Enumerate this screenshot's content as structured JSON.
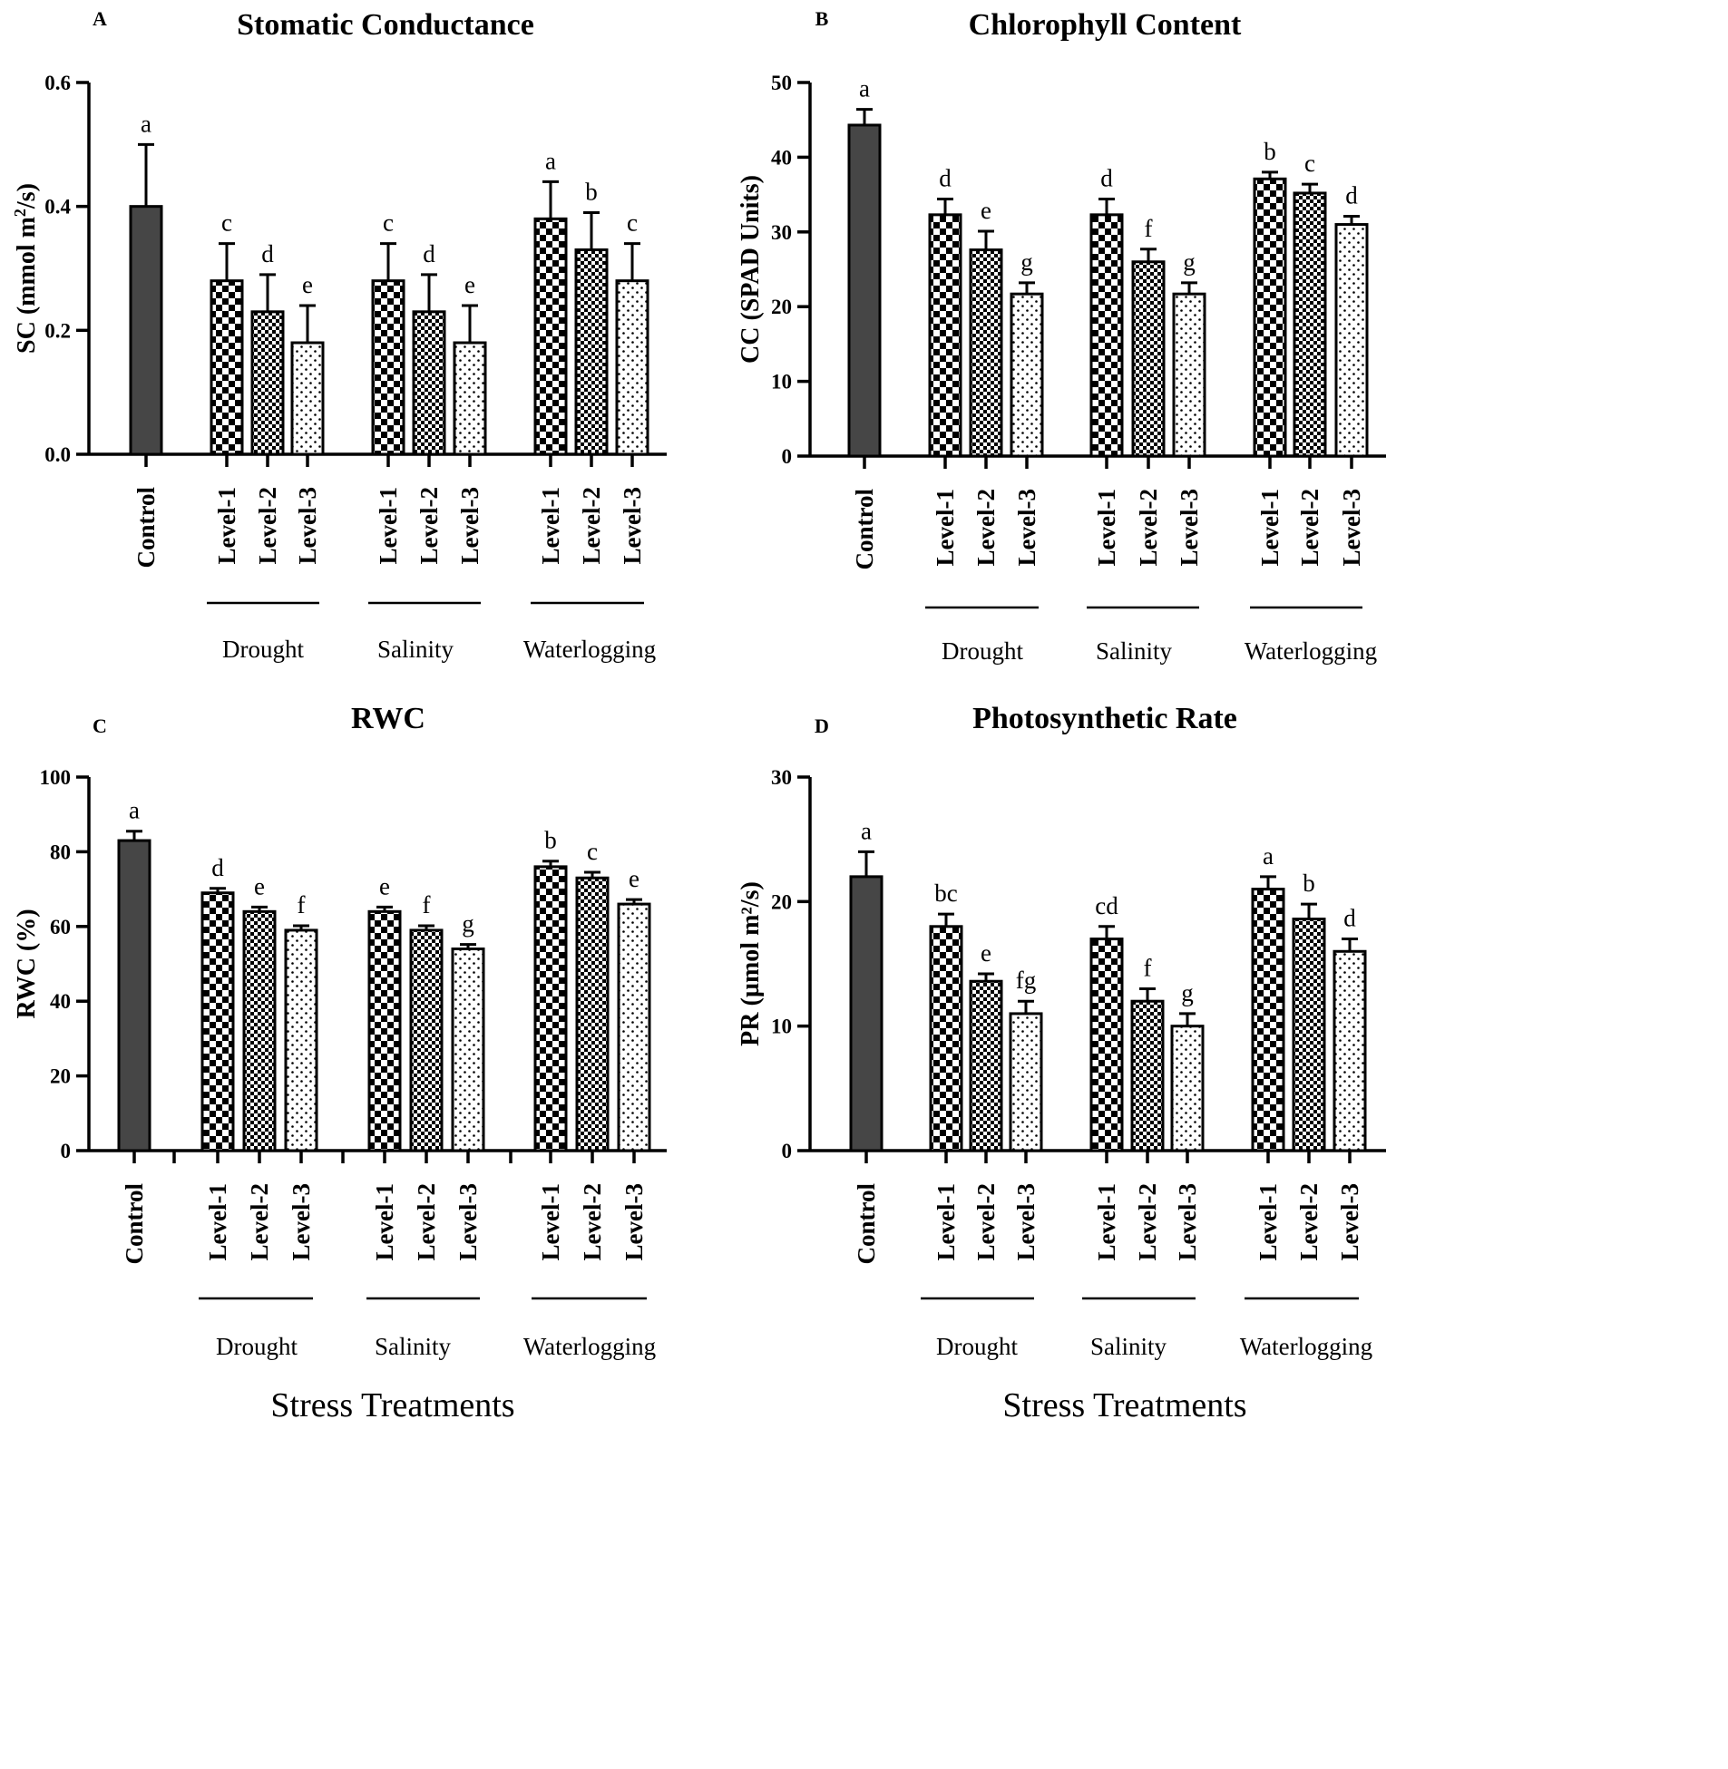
{
  "chart_data": [
    {
      "panel": "A",
      "type": "bar",
      "title": "Stomatic Conductance",
      "ylabel_pre": "SC (mmol m",
      "ylabel_sup": "2",
      "ylabel_post": "/s)",
      "ylim": [
        0,
        0.6
      ],
      "yticks": [
        "0.0",
        "0.2",
        "0.4",
        "0.6"
      ],
      "ytick_values": [
        0,
        0.2,
        0.4,
        0.6
      ],
      "categories": [
        "Control",
        "Level-1",
        "Level-2",
        "Level-3",
        "Level-1",
        "Level-2",
        "Level-3",
        "Level-1",
        "Level-2",
        "Level-3"
      ],
      "groups": [
        "Drought",
        "Salinity",
        "Waterlogging"
      ],
      "values": [
        0.4,
        0.28,
        0.23,
        0.18,
        0.28,
        0.23,
        0.18,
        0.38,
        0.33,
        0.28
      ],
      "errors": [
        0.1,
        0.06,
        0.06,
        0.06,
        0.06,
        0.06,
        0.06,
        0.06,
        0.06,
        0.06
      ],
      "letters": [
        "a",
        "c",
        "d",
        "e",
        "c",
        "d",
        "e",
        "a",
        "b",
        "c"
      ],
      "xlabel": ""
    },
    {
      "panel": "B",
      "type": "bar",
      "title": "Chlorophyll Content",
      "ylabel_pre": "CC (SPAD Units)",
      "ylabel_sup": "",
      "ylabel_post": "",
      "ylim": [
        0,
        50
      ],
      "yticks": [
        "0",
        "10",
        "20",
        "30",
        "40",
        "50"
      ],
      "ytick_values": [
        0,
        10,
        20,
        30,
        40,
        50
      ],
      "categories": [
        "Control",
        "Level-1",
        "Level-2",
        "Level-3",
        "Level-1",
        "Level-2",
        "Level-3",
        "Level-1",
        "Level-2",
        "Level-3"
      ],
      "groups": [
        "Drought",
        "Salinity",
        "Waterlogging"
      ],
      "values": [
        44.3,
        32.3,
        27.6,
        21.7,
        32.3,
        26.0,
        21.7,
        37.1,
        35.2,
        31.0
      ],
      "errors": [
        2.1,
        2.1,
        2.5,
        1.5,
        2.1,
        1.7,
        1.5,
        0.9,
        1.2,
        1.1
      ],
      "letters": [
        "a",
        "d",
        "e",
        "g",
        "d",
        "f",
        "g",
        "b",
        "c",
        "d"
      ],
      "xlabel": ""
    },
    {
      "panel": "C",
      "type": "bar",
      "title": "RWC",
      "ylabel_pre": "RWC (%)",
      "ylabel_sup": "",
      "ylabel_post": "",
      "ylim": [
        0,
        100
      ],
      "yticks": [
        "0",
        "20",
        "40",
        "60",
        "80",
        "100"
      ],
      "ytick_values": [
        0,
        20,
        40,
        60,
        80,
        100
      ],
      "categories": [
        "Control",
        "Level-1",
        "Level-2",
        "Level-3",
        "Level-1",
        "Level-2",
        "Level-3",
        "Level-1",
        "Level-2",
        "Level-3"
      ],
      "groups": [
        "Drought",
        "Salinity",
        "Waterlogging"
      ],
      "values": [
        83,
        69,
        64,
        59,
        64,
        59,
        54,
        76,
        73,
        66
      ],
      "errors": [
        2.5,
        1.2,
        1.2,
        1.2,
        1.2,
        1.2,
        1.2,
        1.5,
        1.5,
        1.2
      ],
      "letters": [
        "a",
        "d",
        "e",
        "f",
        "e",
        "f",
        "g",
        "b",
        "c",
        "e"
      ],
      "xlabel": "Stress Treatments"
    },
    {
      "panel": "D",
      "type": "bar",
      "title": "Photosynthetic Rate",
      "ylabel_pre": "PR (µmol m²/s)",
      "ylabel_sup": "",
      "ylabel_post": "",
      "ylim": [
        0,
        30
      ],
      "yticks": [
        "0",
        "10",
        "20",
        "30"
      ],
      "ytick_values": [
        0,
        10,
        20,
        30
      ],
      "categories": [
        "Control",
        "Level-1",
        "Level-2",
        "Level-3",
        "Level-1",
        "Level-2",
        "Level-3",
        "Level-1",
        "Level-2",
        "Level-3"
      ],
      "groups": [
        "Drought",
        "Salinity",
        "Waterlogging"
      ],
      "values": [
        22,
        18,
        13.6,
        11,
        17,
        12,
        10,
        21,
        18.6,
        16
      ],
      "errors": [
        2.0,
        1.0,
        0.6,
        1.0,
        1.0,
        1.0,
        1.0,
        1.0,
        1.2,
        1.0
      ],
      "letters": [
        "a",
        "bc",
        "e",
        "fg",
        "cd",
        "f",
        "g",
        "a",
        "b",
        "d"
      ],
      "xlabel": "Stress Treatments"
    }
  ],
  "colors": {
    "control_fill": "#464646",
    "ink": "#000000",
    "background": "#ffffff"
  },
  "patterns": [
    "solid",
    "checker-large",
    "checker-small",
    "dots"
  ]
}
